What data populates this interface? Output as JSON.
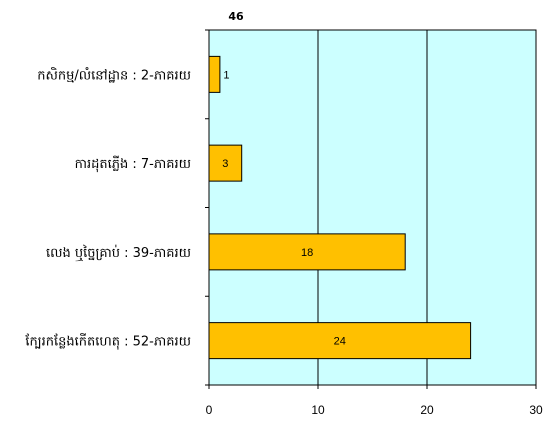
{
  "chart_data": {
    "type": "bar",
    "orientation": "horizontal",
    "title": "46",
    "categories": [
      "កសិកម្ម/លំនៅដ្ឋាន : 2-ភាគរយ",
      "ការដុតភ្លើង : 7-ភាគរយ",
      "លេង ឬច្នៃគ្រាប់ : 39-ភាគរយ",
      "ក្បែរកន្លែងកើតហេតុ : 52-ភាគរយ"
    ],
    "values": [
      1,
      3,
      18,
      24
    ],
    "data_labels": [
      "1",
      "3",
      "18",
      "24"
    ],
    "xlim": [
      0,
      30
    ],
    "x_ticks": [
      0,
      10,
      20,
      30
    ],
    "x_tick_labels": [
      "0",
      "10",
      "20",
      "30"
    ],
    "grid": "vertical",
    "legend": "none",
    "colors": {
      "bar_fill": "#ffc000",
      "bar_stroke": "#000000",
      "plot_background": "#ccffff",
      "grid": "#000000"
    }
  }
}
